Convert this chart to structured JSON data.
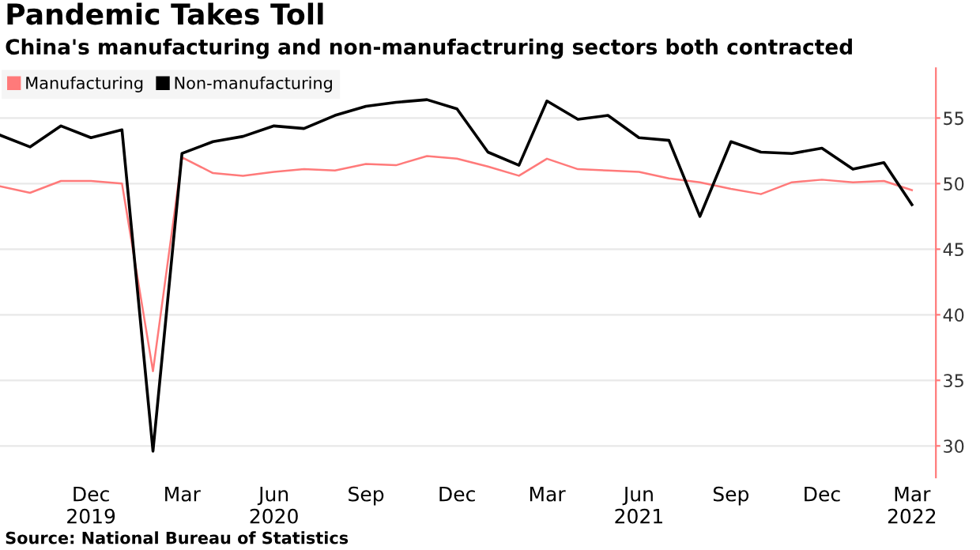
{
  "chart_data": {
    "type": "line",
    "title": "Pandemic Takes Toll",
    "subtitle": "China's manufacturing and non-manufactruring sectors both contracted",
    "x": [
      "2019-09",
      "2019-10",
      "2019-11",
      "2019-12",
      "2020-01",
      "2020-02",
      "2020-03",
      "2020-04",
      "2020-05",
      "2020-06",
      "2020-07",
      "2020-08",
      "2020-09",
      "2020-10",
      "2020-11",
      "2020-12",
      "2021-01",
      "2021-02",
      "2021-03",
      "2021-04",
      "2021-05",
      "2021-06",
      "2021-07",
      "2021-08",
      "2021-09",
      "2021-10",
      "2021-11",
      "2021-12",
      "2022-01",
      "2022-02",
      "2022-03"
    ],
    "series": [
      {
        "name": "Manufacturing",
        "color": "#ff7a7a",
        "values": [
          49.8,
          49.3,
          50.2,
          50.2,
          50.0,
          35.7,
          52.0,
          50.8,
          50.6,
          50.9,
          51.1,
          51.0,
          51.5,
          51.4,
          52.1,
          51.9,
          51.3,
          50.6,
          51.9,
          51.1,
          51.0,
          50.9,
          50.4,
          50.1,
          49.6,
          49.2,
          50.1,
          50.3,
          50.1,
          50.2,
          49.5
        ]
      },
      {
        "name": "Non-manufacturing",
        "color": "#000000",
        "values": [
          53.7,
          52.8,
          54.4,
          53.5,
          54.1,
          29.6,
          52.3,
          53.2,
          53.6,
          54.4,
          54.2,
          55.2,
          55.9,
          56.2,
          56.4,
          55.7,
          52.4,
          51.4,
          56.3,
          54.9,
          55.2,
          53.5,
          53.3,
          47.5,
          53.2,
          52.4,
          52.3,
          52.7,
          51.1,
          51.6,
          48.4
        ]
      }
    ],
    "xlim": [
      "2019-09-01",
      "2022-03-25"
    ],
    "xticks": [
      {
        "value": "2019-12",
        "label": "Dec\n2019"
      },
      {
        "value": "2020-03",
        "label": "Mar"
      },
      {
        "value": "2020-06",
        "label": "Jun\n2020"
      },
      {
        "value": "2020-09",
        "label": "Sep"
      },
      {
        "value": "2020-12",
        "label": "Dec"
      },
      {
        "value": "2021-03",
        "label": "Mar"
      },
      {
        "value": "2021-06",
        "label": "Jun\n2021"
      },
      {
        "value": "2021-09",
        "label": "Sep"
      },
      {
        "value": "2021-12",
        "label": "Dec"
      },
      {
        "value": "2022-03",
        "label": "Mar\n2022"
      }
    ],
    "ylim": [
      27.6,
      58.8
    ],
    "yticks": [
      30,
      35,
      40,
      45,
      50,
      55
    ],
    "grid": "y",
    "legend": "top left",
    "marker": "none",
    "line_style": "solid",
    "annotations": [
      "Source: National Bureau of Statistics"
    ]
  }
}
